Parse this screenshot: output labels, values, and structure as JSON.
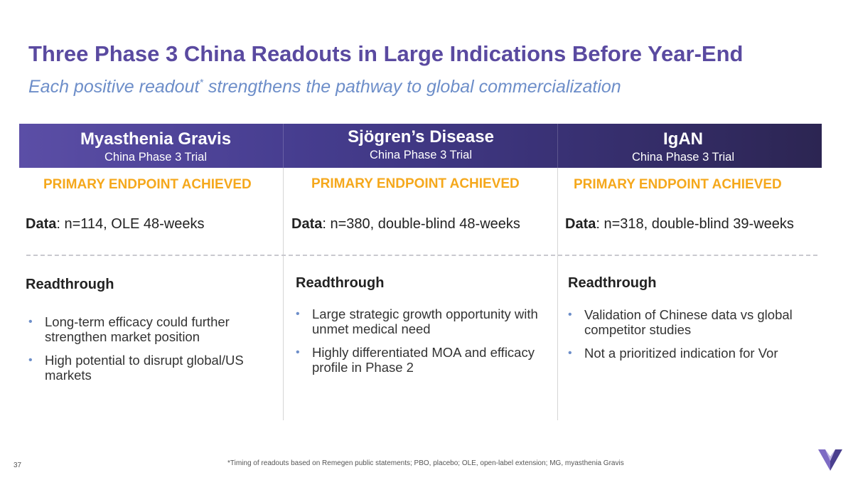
{
  "slide": {
    "title": "Three Phase 3 China Readouts in Large Indications Before Year-End",
    "subtitle_main": "Each positive readout",
    "subtitle_sup": "*",
    "subtitle_rest": " strengthens the pathway to global commercialization",
    "page_number": "37",
    "footnote": "*Timing of readouts based on Remegen public statements; PBO, placebo; OLE, open-label extension; MG, myasthenia Gravis",
    "logo_icon": "v-logo-icon",
    "colors": {
      "title": "#5a4aa0",
      "subtitle": "#6d8ec9",
      "endpoint": "#f5a81c",
      "header_start": "#5b4ea6",
      "header_end": "#2c2552"
    }
  },
  "columns": [
    {
      "name": "Myasthenia Gravis",
      "trial": "China Phase 3 Trial",
      "endpoint": "PRIMARY ENDPOINT ACHIEVED",
      "data_label": "Data",
      "data_value": ": n=114, OLE 48-weeks",
      "readthrough": "Readthrough",
      "bullets": [
        "Long-term efficacy could further strengthen market position",
        "High potential to disrupt global/US markets"
      ]
    },
    {
      "name": "Sjögren’s Disease",
      "trial": "China Phase 3 Trial",
      "endpoint": "PRIMARY ENDPOINT ACHIEVED",
      "data_label": "Data",
      "data_value": ": n=380, double-blind 48-weeks",
      "readthrough": "Readthrough",
      "bullets": [
        "Large strategic growth opportunity with unmet medical need",
        "Highly differentiated MOA and efficacy profile in Phase 2"
      ]
    },
    {
      "name": "IgAN",
      "trial": "China Phase 3 Trial",
      "endpoint": "PRIMARY ENDPOINT ACHIEVED",
      "data_label": "Data",
      "data_value": ": n=318, double-blind 39-weeks",
      "readthrough": "Readthrough",
      "bullets": [
        "Validation of Chinese data vs global competitor studies",
        "Not a prioritized indication for Vor"
      ]
    }
  ]
}
